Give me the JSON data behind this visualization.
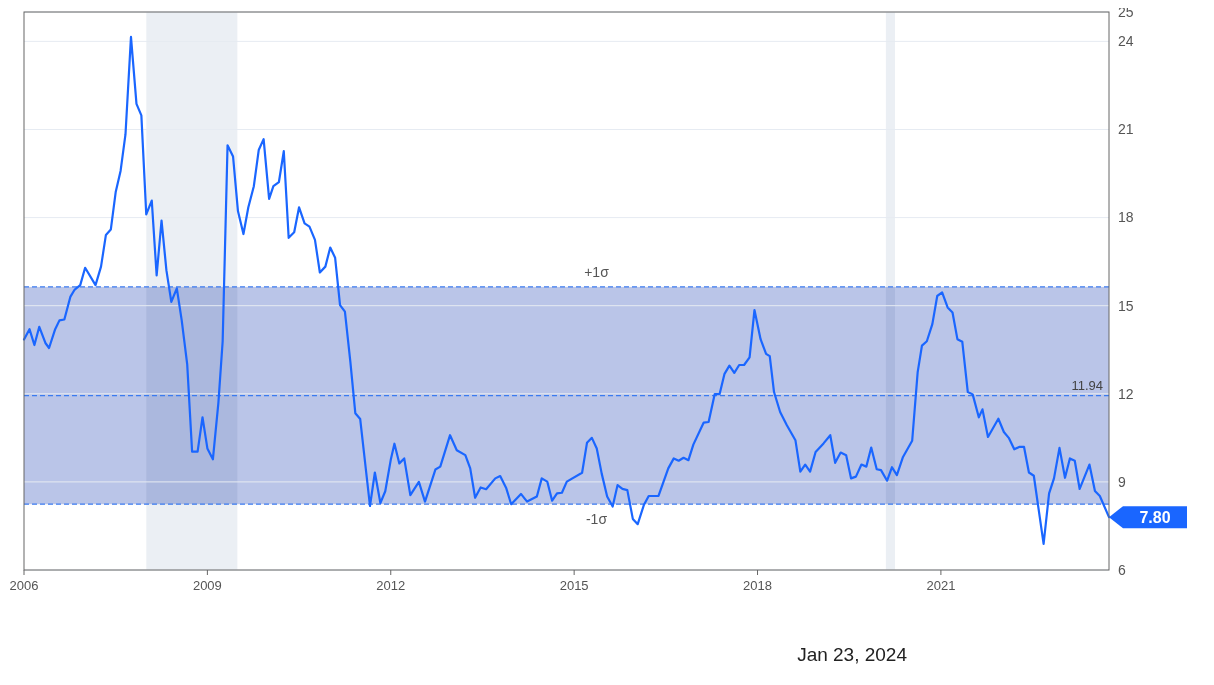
{
  "chart_data": {
    "type": "line",
    "x": [
      2006.0,
      2006.09,
      2006.17,
      2006.25,
      2006.35,
      2006.41,
      2006.51,
      2006.58,
      2006.66,
      2006.76,
      2006.83,
      2006.92,
      2007.0,
      2007.17,
      2007.26,
      2007.34,
      2007.42,
      2007.5,
      2007.58,
      2007.66,
      2007.75,
      2007.84,
      2007.92,
      2008.0,
      2008.09,
      2008.17,
      2008.25,
      2008.33,
      2008.41,
      2008.5,
      2008.58,
      2008.67,
      2008.75,
      2008.84,
      2008.92,
      2009.0,
      2009.09,
      2009.18,
      2009.25,
      2009.33,
      2009.42,
      2009.5,
      2009.59,
      2009.67,
      2009.76,
      2009.84,
      2009.92,
      2010.01,
      2010.08,
      2010.17,
      2010.25,
      2010.33,
      2010.42,
      2010.5,
      2010.59,
      2010.67,
      2010.76,
      2010.84,
      2010.93,
      2011.01,
      2011.09,
      2011.17,
      2011.25,
      2011.34,
      2011.42,
      2011.5,
      2011.66,
      2011.74,
      2011.83,
      2011.91,
      2012.0,
      2012.06,
      2012.14,
      2012.22,
      2012.32,
      2012.46,
      2012.56,
      2012.73,
      2012.81,
      2012.97,
      2013.08,
      2013.22,
      2013.3,
      2013.38,
      2013.47,
      2013.56,
      2013.71,
      2013.79,
      2013.89,
      2013.97,
      2014.13,
      2014.23,
      2014.39,
      2014.47,
      2014.56,
      2014.64,
      2014.72,
      2014.8,
      2014.88,
      2015.13,
      2015.21,
      2015.29,
      2015.37,
      2015.45,
      2015.54,
      2015.63,
      2015.71,
      2015.79,
      2015.87,
      2015.96,
      2016.04,
      2016.14,
      2016.22,
      2016.38,
      2016.54,
      2016.63,
      2016.71,
      2016.79,
      2016.87,
      2016.95,
      2017.12,
      2017.2,
      2017.3,
      2017.38,
      2017.46,
      2017.54,
      2017.62,
      2017.7,
      2017.78,
      2017.87,
      2017.95,
      2018.05,
      2018.14,
      2018.2,
      2018.27,
      2018.37,
      2018.48,
      2018.62,
      2018.7,
      2018.78,
      2018.86,
      2018.95,
      2019.08,
      2019.19,
      2019.27,
      2019.36,
      2019.45,
      2019.53,
      2019.61,
      2019.7,
      2019.78,
      2019.86,
      2019.95,
      2020.02,
      2020.12,
      2020.2,
      2020.28,
      2020.38,
      2020.53,
      2020.62,
      2020.69,
      2020.77,
      2020.86,
      2020.94,
      2021.02,
      2021.11,
      2021.19,
      2021.27,
      2021.35,
      2021.44,
      2021.52,
      2021.62,
      2021.68,
      2021.77,
      2021.94,
      2022.03,
      2022.11,
      2022.2,
      2022.28,
      2022.36,
      2022.44,
      2022.52,
      2022.68,
      2022.77,
      2022.85,
      2022.94,
      2023.03,
      2023.11,
      2023.19,
      2023.27,
      2023.43,
      2023.52,
      2023.6,
      2023.75
    ],
    "series": [
      {
        "color": "#1a66ff",
        "values": [
          13.85,
          14.2,
          13.66,
          14.28,
          13.73,
          13.56,
          14.2,
          14.5,
          14.53,
          15.31,
          15.55,
          15.7,
          16.29,
          15.7,
          16.33,
          17.41,
          17.59,
          18.87,
          19.59,
          20.83,
          24.15,
          21.87,
          21.48,
          18.11,
          18.58,
          16.03,
          17.9,
          16.2,
          15.13,
          15.59,
          14.5,
          13.0,
          10.03,
          10.03,
          11.2,
          10.14,
          9.77,
          11.69,
          13.79,
          20.46,
          20.08,
          18.22,
          17.44,
          18.35,
          19.07,
          20.3,
          20.67,
          18.64,
          19.07,
          19.21,
          20.26,
          17.31,
          17.5,
          18.35,
          17.8,
          17.69,
          17.24,
          16.13,
          16.33,
          16.98,
          16.63,
          15.02,
          14.8,
          13.07,
          11.34,
          11.14,
          8.18,
          9.32,
          8.28,
          8.68,
          9.75,
          10.3,
          9.63,
          9.8,
          8.55,
          9.0,
          8.33,
          9.42,
          9.52,
          10.59,
          10.08,
          9.91,
          9.46,
          8.46,
          8.81,
          8.75,
          9.12,
          9.2,
          8.78,
          8.24,
          8.59,
          8.33,
          8.5,
          9.12,
          9.01,
          8.36,
          8.61,
          8.63,
          9.01,
          9.31,
          10.33,
          10.5,
          10.14,
          9.29,
          8.5,
          8.16,
          8.89,
          8.76,
          8.72,
          7.74,
          7.56,
          8.21,
          8.52,
          8.52,
          9.46,
          9.8,
          9.72,
          9.82,
          9.74,
          10.27,
          11.02,
          11.04,
          11.99,
          11.99,
          12.68,
          12.96,
          12.71,
          12.98,
          12.98,
          13.24,
          14.85,
          13.86,
          13.36,
          13.28,
          12.06,
          11.38,
          10.93,
          10.42,
          9.35,
          9.59,
          9.35,
          10.02,
          10.31,
          10.59,
          9.65,
          10.0,
          9.91,
          9.12,
          9.18,
          9.59,
          9.52,
          10.17,
          9.43,
          9.4,
          9.04,
          9.5,
          9.23,
          9.85,
          10.4,
          12.74,
          13.64,
          13.79,
          14.37,
          15.33,
          15.45,
          14.94,
          14.77,
          13.86,
          13.77,
          12.06,
          11.98,
          11.2,
          11.47,
          10.53,
          11.15,
          10.7,
          10.5,
          10.11,
          10.19,
          10.19,
          9.32,
          9.21,
          6.89,
          8.61,
          9.12,
          10.16,
          9.14,
          9.8,
          9.72,
          8.76,
          9.59,
          8.69,
          8.52,
          7.8
        ]
      }
    ],
    "xlim": [
      2006,
      2023.75
    ],
    "xticks": [
      2006,
      2009,
      2012,
      2015,
      2018,
      2021
    ],
    "ylim": [
      6,
      25
    ],
    "yticks": [
      6,
      9,
      12,
      15,
      18,
      21,
      24,
      25
    ],
    "grid": "y",
    "bands": [
      {
        "axis": "y",
        "from": 8.24,
        "to": 15.64,
        "color": "#bac5e8"
      },
      {
        "axis": "x",
        "from": 2008.0,
        "to": 2009.49,
        "color": "#e8edf2"
      },
      {
        "axis": "x",
        "from": 2020.1,
        "to": 2020.25,
        "color": "#e8edf2"
      }
    ],
    "ref_lines": [
      {
        "axis": "y",
        "value": 15.64,
        "label": "+1σ",
        "color": "#3b7bf0",
        "line_style": "dashed"
      },
      {
        "axis": "y",
        "value": 11.94,
        "label": "11.94",
        "color": "#3b7bf0",
        "line_style": "dashed"
      },
      {
        "axis": "y",
        "value": 8.24,
        "label": "-1σ",
        "color": "#3b7bf0",
        "line_style": "dashed"
      }
    ],
    "annotations": [
      {
        "text": "7.80",
        "x": 2023.75,
        "y": 7.8
      },
      "Jan 23, 2024"
    ]
  }
}
